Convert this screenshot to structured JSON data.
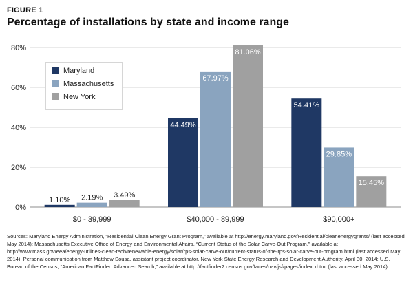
{
  "figure_label": "FIGURE 1",
  "chart_data": {
    "type": "bar",
    "title": "Percentage of installations by state and income range",
    "categories": [
      "$0 - 39,999",
      "$40,000 - 89,999",
      "$90,000+"
    ],
    "series": [
      {
        "name": "Maryland",
        "values": [
          1.1,
          44.49,
          54.41
        ],
        "labels": [
          "1.10%",
          "44.49%",
          "54.41%"
        ],
        "color": "#1f3864"
      },
      {
        "name": "Massachusetts",
        "values": [
          2.19,
          67.97,
          29.85
        ],
        "labels": [
          "2.19%",
          "67.97%",
          "29.85%"
        ],
        "color": "#8aa4bf"
      },
      {
        "name": "New York",
        "values": [
          3.49,
          81.06,
          15.45
        ],
        "labels": [
          "3.49%",
          "81.06%",
          "15.45%"
        ],
        "color": "#a0a0a0"
      }
    ],
    "ylim": [
      0,
      80
    ],
    "yticks": [
      0,
      20,
      40,
      60,
      80
    ],
    "ytick_labels": [
      "0%",
      "20%",
      "40%",
      "60%",
      "80%"
    ],
    "xlabel": "",
    "ylabel": "",
    "grid": true,
    "legend_position": "top-left"
  },
  "sources": "Sources: Maryland Energy Administration, “Residential Clean Energy Grant Program,” available at http://energy.maryland.gov/Residential/cleanenergygrants/ (last accessed May 2014); Massachusetts Executive Office of Energy and Environmental Affairs, “Current Status of the Solar Carve-Out Program,” available at http://www.mass.gov/eea/energy-utilities-clean-tech/renewable-energy/solar/rps-solar-carve-out/current-status-of-the-rps-solar-carve-out-program.html (last accessed May 2014); Personal communication from Matthew Sousa, assistant project coordinator, New York State Energy Research and Development Authority, April 30, 2014; U.S. Bureau of the Census, “American FactFinder: Advanced Search,” available at http://factfinder2.census.gov/faces/nav/jsf/pages/index.xhtml (last accessed May 2014)."
}
